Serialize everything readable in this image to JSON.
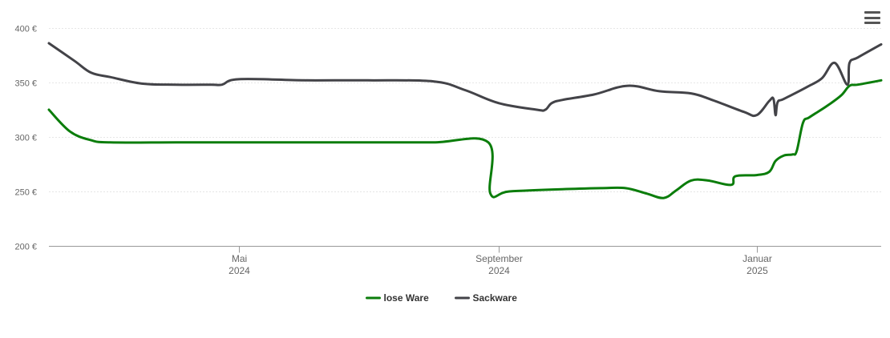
{
  "menu": {
    "icon": "hamburger-menu-icon"
  },
  "chart_data": {
    "type": "line",
    "y_ticks": [
      {
        "value": 200,
        "label": "200 €"
      },
      {
        "value": 250,
        "label": "250 €"
      },
      {
        "value": 300,
        "label": "300 €"
      },
      {
        "value": 350,
        "label": "350 €"
      },
      {
        "value": 400,
        "label": "400 €"
      }
    ],
    "ylim": [
      200,
      400
    ],
    "xlim": [
      "2024-02-01",
      "2025-03-01"
    ],
    "x_ticks": [
      {
        "date": "2024-05-01",
        "label": "Mai",
        "year": "2024"
      },
      {
        "date": "2024-09-01",
        "label": "September",
        "year": "2024"
      },
      {
        "date": "2025-01-01",
        "label": "Januar",
        "year": "2025"
      }
    ],
    "grid": true,
    "legend_position": "bottom-center",
    "series": [
      {
        "name": "lose Ware",
        "color": "#0b7d0b",
        "points": [
          [
            "2024-02-01",
            325
          ],
          [
            "2024-02-11",
            305
          ],
          [
            "2024-02-21",
            297
          ],
          [
            "2024-03-01",
            295
          ],
          [
            "2024-04-01",
            295
          ],
          [
            "2024-05-01",
            295
          ],
          [
            "2024-06-01",
            295
          ],
          [
            "2024-07-01",
            295
          ],
          [
            "2024-08-01",
            295
          ],
          [
            "2024-08-27",
            295
          ],
          [
            "2024-08-28",
            248
          ],
          [
            "2024-09-06",
            250
          ],
          [
            "2024-10-01",
            252
          ],
          [
            "2024-10-20",
            253
          ],
          [
            "2024-10-31",
            253
          ],
          [
            "2024-11-10",
            248
          ],
          [
            "2024-11-18",
            244
          ],
          [
            "2024-11-24",
            251
          ],
          [
            "2024-12-01",
            260
          ],
          [
            "2024-12-09",
            260
          ],
          [
            "2024-12-20",
            256
          ],
          [
            "2024-12-22",
            264
          ],
          [
            "2025-01-01",
            265
          ],
          [
            "2025-01-07",
            268
          ],
          [
            "2025-01-10",
            278
          ],
          [
            "2025-01-14",
            283
          ],
          [
            "2025-01-18",
            284
          ],
          [
            "2025-01-20",
            287
          ],
          [
            "2025-01-23",
            313
          ],
          [
            "2025-01-26",
            318
          ],
          [
            "2025-02-03",
            328
          ],
          [
            "2025-02-10",
            338
          ],
          [
            "2025-02-14",
            347
          ],
          [
            "2025-02-18",
            348
          ],
          [
            "2025-03-01",
            352
          ]
        ]
      },
      {
        "name": "Sackware",
        "color": "#434348",
        "points": [
          [
            "2024-02-01",
            386
          ],
          [
            "2024-02-13",
            370
          ],
          [
            "2024-02-21",
            359
          ],
          [
            "2024-03-01",
            355
          ],
          [
            "2024-03-16",
            349
          ],
          [
            "2024-04-01",
            348
          ],
          [
            "2024-04-18",
            348
          ],
          [
            "2024-04-23",
            348
          ],
          [
            "2024-05-01",
            353
          ],
          [
            "2024-06-01",
            352
          ],
          [
            "2024-07-01",
            352
          ],
          [
            "2024-08-01",
            351
          ],
          [
            "2024-08-16",
            343
          ],
          [
            "2024-09-01",
            331
          ],
          [
            "2024-09-19",
            325
          ],
          [
            "2024-09-23",
            325
          ],
          [
            "2024-09-26",
            331
          ],
          [
            "2024-10-01",
            334
          ],
          [
            "2024-10-16",
            339
          ],
          [
            "2024-11-01",
            347
          ],
          [
            "2024-11-16",
            342
          ],
          [
            "2024-12-01",
            340
          ],
          [
            "2024-12-11",
            334
          ],
          [
            "2024-12-26",
            323
          ],
          [
            "2025-01-01",
            320
          ],
          [
            "2025-01-07",
            333
          ],
          [
            "2025-01-09",
            335
          ],
          [
            "2025-01-10",
            320
          ],
          [
            "2025-01-11",
            332
          ],
          [
            "2025-01-14",
            335
          ],
          [
            "2025-01-25",
            346
          ],
          [
            "2025-02-01",
            354
          ],
          [
            "2025-02-07",
            368
          ],
          [
            "2025-02-13",
            348
          ],
          [
            "2025-02-14",
            368
          ],
          [
            "2025-02-18",
            373
          ],
          [
            "2025-03-01",
            385
          ]
        ]
      }
    ]
  }
}
